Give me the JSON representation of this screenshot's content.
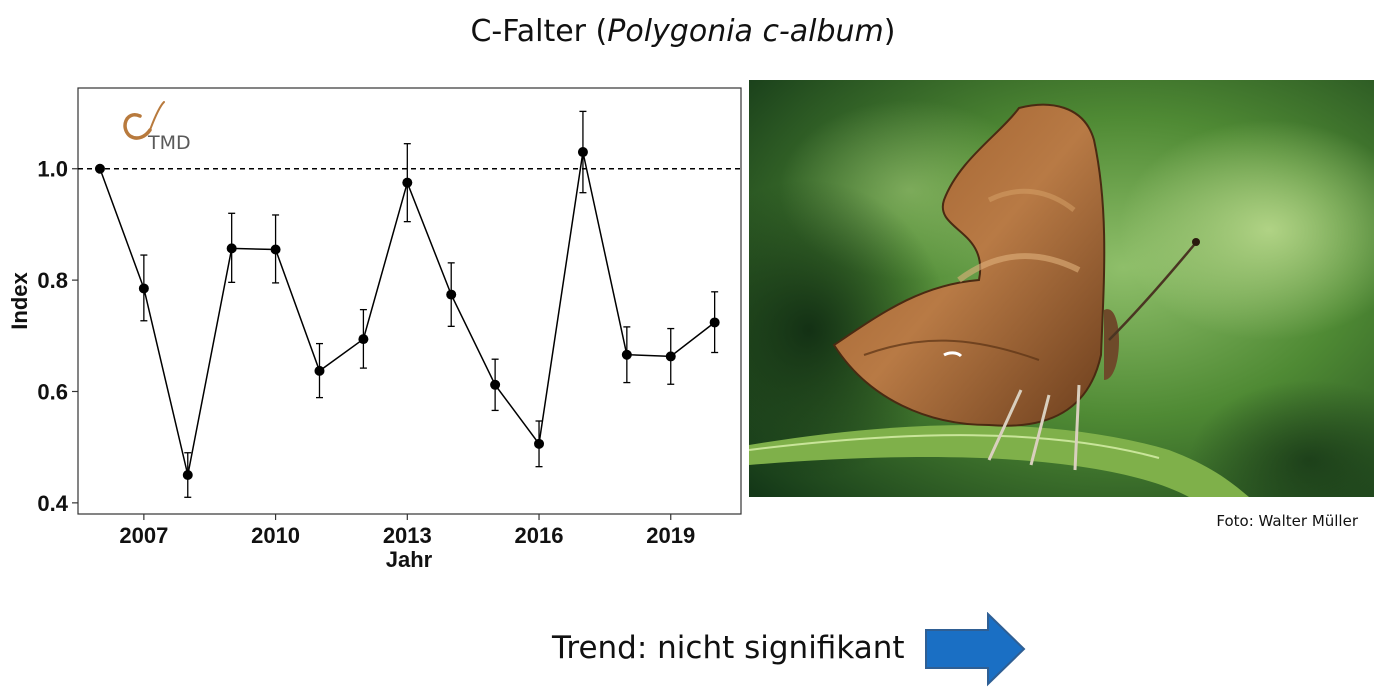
{
  "header": {
    "title_prefix": "C-Falter (",
    "title_species": "Polygonia c-album",
    "title_suffix": ")"
  },
  "chart_data": {
    "type": "line",
    "title": "",
    "xlabel": "Jahr",
    "ylabel": "Index",
    "xlim": [
      2005.5,
      2020.6
    ],
    "ylim": [
      0.38,
      1.145
    ],
    "xticks": [
      2007,
      2010,
      2013,
      2016,
      2019
    ],
    "yticks": [
      0.4,
      0.6,
      0.8,
      1.0
    ],
    "ytick_labels": [
      "0.4",
      "0.6",
      "0.8",
      "1.0"
    ],
    "reference_line": 1.0,
    "grid": false,
    "logo_text": "TMD",
    "series": [
      {
        "x": [
          2006,
          2007,
          2008,
          2009,
          2010,
          2011,
          2012,
          2013,
          2014,
          2015,
          2016,
          2017,
          2018,
          2019,
          2020
        ],
        "values": [
          1.0,
          0.785,
          0.45,
          0.857,
          0.855,
          0.637,
          0.694,
          0.975,
          0.774,
          0.612,
          0.506,
          1.03,
          0.666,
          0.663,
          0.724
        ],
        "lower": [
          1.0,
          0.727,
          0.41,
          0.796,
          0.795,
          0.589,
          0.642,
          0.905,
          0.717,
          0.566,
          0.465,
          0.957,
          0.616,
          0.613,
          0.67
        ],
        "upper": [
          1.0,
          0.845,
          0.49,
          0.92,
          0.917,
          0.686,
          0.747,
          1.045,
          0.831,
          0.658,
          0.547,
          1.103,
          0.716,
          0.713,
          0.779
        ]
      }
    ]
  },
  "photo": {
    "credit": "Foto: Walter Müller"
  },
  "trend": {
    "label": "Trend: nicht signifikant",
    "arrow_color": "#1a6fc4"
  }
}
